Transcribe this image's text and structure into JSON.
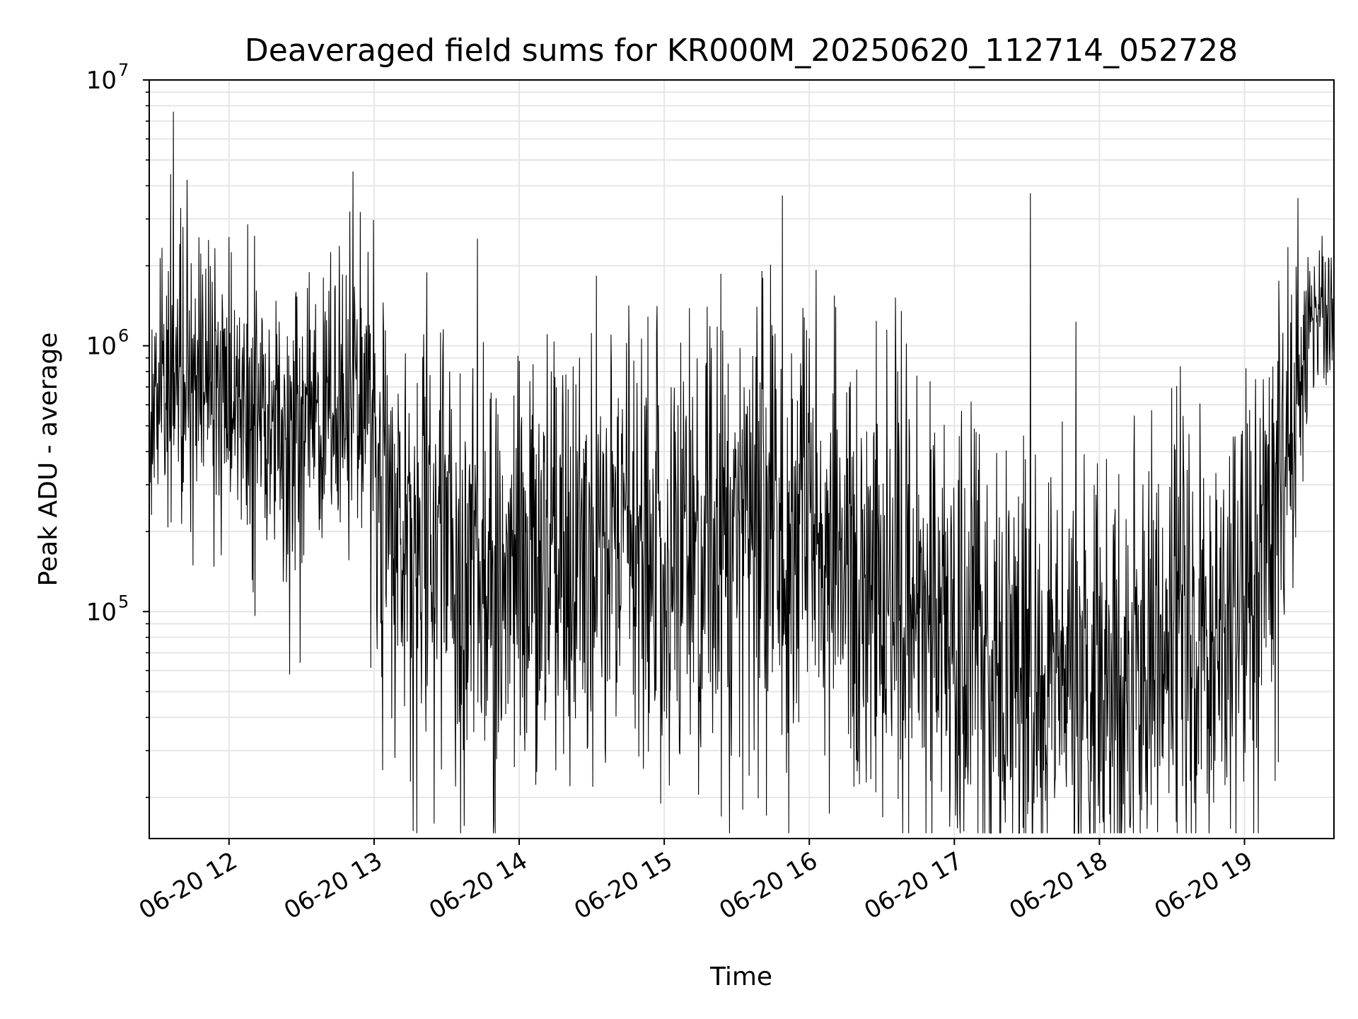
{
  "chart_data": {
    "type": "line",
    "title": "Deaveraged field sums for KR000M_20250620_112714_052728",
    "xlabel": "Time",
    "ylabel": "Peak ADU - average",
    "y_scale": "log",
    "grid": true,
    "grid_color": "#e6e6e6",
    "line_color": "#000000",
    "xlim": [
      "06-20 11:27",
      "06-20 19:37"
    ],
    "ylim": [
      14000,
      10000000
    ],
    "x_ticks": [
      {
        "label": "06-20 12",
        "value": "06-20 12:00"
      },
      {
        "label": "06-20 13",
        "value": "06-20 13:00"
      },
      {
        "label": "06-20 14",
        "value": "06-20 14:00"
      },
      {
        "label": "06-20 15",
        "value": "06-20 15:00"
      },
      {
        "label": "06-20 16",
        "value": "06-20 16:00"
      },
      {
        "label": "06-20 17",
        "value": "06-20 17:00"
      },
      {
        "label": "06-20 18",
        "value": "06-20 18:00"
      },
      {
        "label": "06-20 19",
        "value": "06-20 19:00"
      }
    ],
    "y_ticks": [
      {
        "base": "10",
        "exp": "5",
        "value": 100000
      },
      {
        "base": "10",
        "exp": "6",
        "value": 1000000
      },
      {
        "base": "10",
        "exp": "7",
        "value": 10000000
      }
    ],
    "series_shape": {
      "x_start": "06-20 11:27",
      "x_end": "06-20 19:37",
      "num_points": 2600,
      "baseline_nodes": [
        {
          "x": "06-20 11:27",
          "y": 700000
        },
        {
          "x": "06-20 12:00",
          "y": 650000
        },
        {
          "x": "06-20 12:30",
          "y": 420000
        },
        {
          "x": "06-20 12:57",
          "y": 620000
        },
        {
          "x": "06-20 13:03",
          "y": 230000
        },
        {
          "x": "06-20 13:30",
          "y": 165000
        },
        {
          "x": "06-20 14:00",
          "y": 150000
        },
        {
          "x": "06-20 14:30",
          "y": 190000
        },
        {
          "x": "06-20 15:00",
          "y": 175000
        },
        {
          "x": "06-20 15:30",
          "y": 190000
        },
        {
          "x": "06-20 16:00",
          "y": 190000
        },
        {
          "x": "06-20 16:30",
          "y": 140000
        },
        {
          "x": "06-20 16:50",
          "y": 85000
        },
        {
          "x": "06-20 17:15",
          "y": 65000
        },
        {
          "x": "06-20 17:45",
          "y": 58000
        },
        {
          "x": "06-20 18:15",
          "y": 55000
        },
        {
          "x": "06-20 18:45",
          "y": 75000
        },
        {
          "x": "06-20 19:03",
          "y": 130000
        },
        {
          "x": "06-20 19:20",
          "y": 480000
        },
        {
          "x": "06-20 19:28",
          "y": 1250000
        },
        {
          "x": "06-20 19:37",
          "y": 1300000
        }
      ],
      "spread_nodes": [
        {
          "x": "06-20 11:27",
          "y": 0.28
        },
        {
          "x": "06-20 12:57",
          "y": 0.28
        },
        {
          "x": "06-20 13:03",
          "y": 0.45
        },
        {
          "x": "06-20 19:15",
          "y": 0.45
        },
        {
          "x": "06-20 19:28",
          "y": 0.14
        },
        {
          "x": "06-20 19:37",
          "y": 0.14
        }
      ],
      "spikes": [
        {
          "x": "06-20 11:37",
          "y": 7600000
        },
        {
          "x": "06-20 11:40",
          "y": 3300000
        },
        {
          "x": "06-20 11:41",
          "y": 2800000
        },
        {
          "x": "06-20 12:50",
          "y": 3200000
        },
        {
          "x": "06-20 12:42",
          "y": 2250000
        },
        {
          "x": "06-20 12:01",
          "y": 2250000
        },
        {
          "x": "06-20 15:22",
          "y": 1180000
        },
        {
          "x": "06-20 15:58",
          "y": 1280000
        },
        {
          "x": "06-20 16:32",
          "y": 1150000
        },
        {
          "x": "06-20 19:18",
          "y": 2350000
        },
        {
          "x": "06-20 19:35",
          "y": 2100000
        },
        {
          "x": "06-20 16:58",
          "y": 15500
        },
        {
          "x": "06-20 18:00",
          "y": 16000
        },
        {
          "x": "06-20 18:13",
          "y": 17000
        },
        {
          "x": "06-20 13:58",
          "y": 26000
        },
        {
          "x": "06-20 12:25",
          "y": 58000
        },
        {
          "x": "06-20 17:33",
          "y": 19000
        }
      ]
    }
  }
}
